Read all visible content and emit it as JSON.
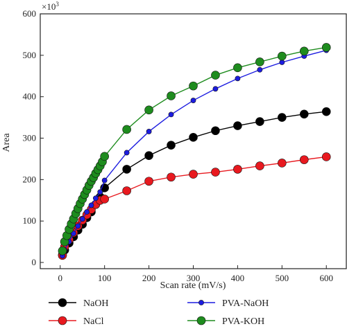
{
  "chart_data": {
    "type": "line",
    "title": "",
    "xlabel": "Scan rate (mV/s)",
    "ylabel": "Area",
    "y_multiplier_label": "×10",
    "y_multiplier_exp": "3",
    "xlim": [
      -45,
      645
    ],
    "ylim": [
      -15,
      600
    ],
    "xticks": [
      0,
      100,
      200,
      300,
      400,
      500,
      600
    ],
    "yticks": [
      0,
      100,
      200,
      300,
      400,
      500,
      600
    ],
    "grid": false,
    "legend_position": "bottom",
    "series": [
      {
        "name": "NaOH",
        "color": "#000000",
        "x": [
          5,
          10,
          20,
          30,
          40,
          50,
          60,
          70,
          80,
          90,
          100,
          150,
          200,
          250,
          300,
          350,
          400,
          450,
          500,
          550,
          600
        ],
        "y": [
          18,
          30,
          47,
          62,
          78,
          92,
          108,
          122,
          140,
          158,
          180,
          225,
          258,
          283,
          302,
          318,
          330,
          340,
          350,
          358,
          364
        ]
      },
      {
        "name": "NaCl",
        "color": "#e8191f",
        "x": [
          5,
          10,
          20,
          30,
          40,
          50,
          60,
          70,
          80,
          90,
          100,
          150,
          200,
          250,
          300,
          350,
          400,
          450,
          500,
          550,
          600
        ],
        "y": [
          17,
          38,
          55,
          72,
          88,
          102,
          115,
          128,
          140,
          150,
          153,
          173,
          196,
          206,
          213,
          218,
          225,
          233,
          240,
          248,
          255
        ]
      },
      {
        "name": "PVA-NaOH",
        "color": "#1c1ce0",
        "x": [
          5,
          10,
          20,
          30,
          40,
          50,
          60,
          70,
          80,
          90,
          100,
          150,
          200,
          250,
          300,
          350,
          400,
          450,
          500,
          550,
          600
        ],
        "y": [
          16,
          30,
          50,
          70,
          88,
          105,
          122,
          138,
          155,
          170,
          198,
          265,
          316,
          357,
          391,
          419,
          444,
          465,
          483,
          498,
          512
        ]
      },
      {
        "name": "PVA-KOH",
        "color": "#1e8c1e",
        "x": [
          5,
          10,
          15,
          20,
          25,
          30,
          35,
          40,
          45,
          50,
          55,
          60,
          65,
          70,
          75,
          80,
          85,
          90,
          95,
          100,
          150,
          200,
          250,
          300,
          350,
          400,
          450,
          500,
          550,
          600
        ],
        "y": [
          28,
          50,
          65,
          80,
          93,
          105,
          118,
          130,
          142,
          153,
          164,
          175,
          186,
          196,
          205,
          215,
          224,
          233,
          243,
          256,
          321,
          368,
          402,
          426,
          452,
          470,
          484,
          498,
          510,
          519
        ]
      }
    ]
  }
}
